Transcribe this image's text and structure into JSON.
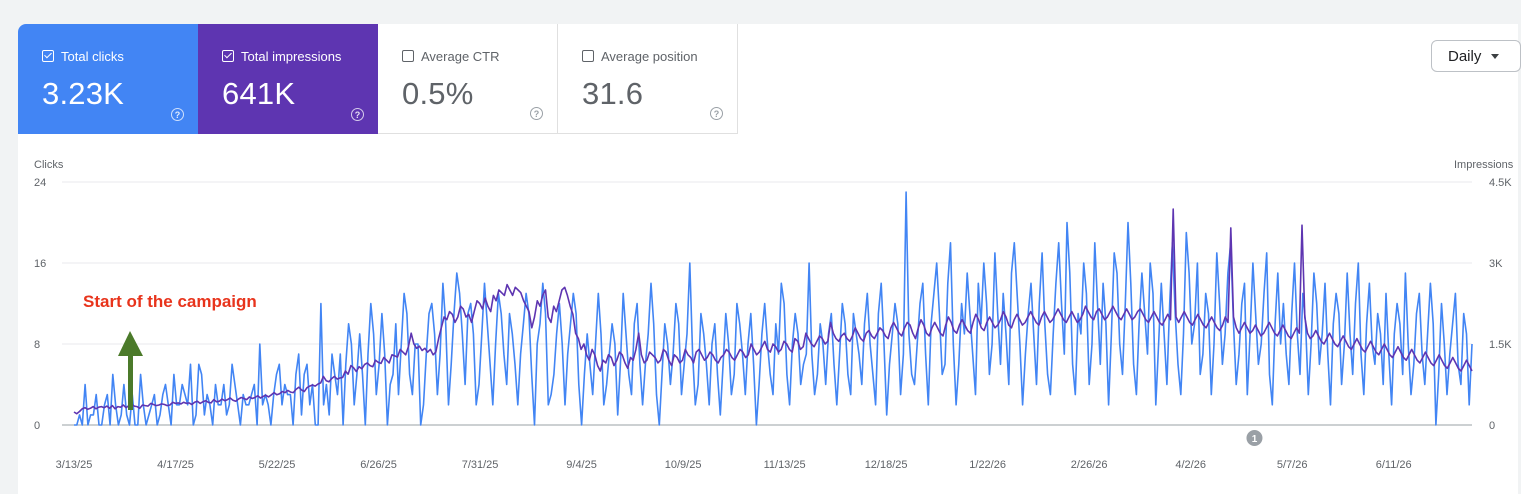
{
  "metrics": {
    "clicks": {
      "label": "Total clicks",
      "value": "3.23K",
      "checked": true
    },
    "impressions": {
      "label": "Total impressions",
      "value": "641K",
      "checked": true
    },
    "ctr": {
      "label": "Average CTR",
      "value": "0.5%",
      "checked": false
    },
    "position": {
      "label": "Average position",
      "value": "31.6",
      "checked": false
    }
  },
  "help_glyph": "?",
  "period_select": {
    "selected": "Daily"
  },
  "colors": {
    "clicks": "#4285f4",
    "impressions": "#5e35b1",
    "annotation": "#e8341c",
    "arrow": "#4b7a2a"
  },
  "annotation": {
    "text": "Start of the campaign"
  },
  "event_marker": {
    "label": "1",
    "date": "4/24/26"
  },
  "chart_data": {
    "type": "line",
    "left_axis": {
      "label": "Clicks",
      "ticks": [
        "24",
        "16",
        "8",
        "0"
      ],
      "ylim": [
        0,
        24
      ]
    },
    "right_axis": {
      "label": "Impressions",
      "ticks": [
        "4.5K",
        "3K",
        "1.5K",
        "0"
      ],
      "ylim": [
        0,
        4500
      ]
    },
    "x_tick_labels": [
      "3/13/25",
      "4/17/25",
      "5/22/25",
      "6/26/25",
      "7/31/25",
      "9/4/25",
      "10/9/25",
      "11/13/25",
      "12/18/25",
      "1/22/26",
      "2/26/26",
      "4/2/26",
      "5/7/26",
      "6/11/26"
    ],
    "x_range": [
      "3/13/25",
      "7/8/26"
    ],
    "grid": true,
    "series": [
      {
        "name": "Clicks",
        "axis": "left",
        "color": "#4285f4",
        "values": [
          0,
          0,
          1,
          0,
          4,
          0,
          1,
          1,
          3,
          0,
          0,
          2,
          3,
          0,
          5,
          2,
          0,
          1,
          4,
          1,
          0,
          3,
          0,
          0,
          5,
          2,
          0,
          1,
          2,
          3,
          0,
          1,
          3,
          4,
          2,
          0,
          5,
          2,
          2,
          4,
          3,
          2,
          6,
          0,
          1,
          6,
          5,
          1,
          3,
          2,
          0,
          4,
          2,
          2,
          4,
          1,
          2,
          6,
          4,
          2,
          0,
          3,
          2,
          2,
          3,
          4,
          0,
          8,
          2,
          3,
          2,
          0,
          3,
          5,
          6,
          2,
          4,
          3,
          3,
          0,
          5,
          7,
          1,
          5,
          6,
          2,
          4,
          0,
          0,
          12,
          2,
          4,
          1,
          7,
          5,
          3,
          7,
          0,
          6,
          10,
          8,
          2,
          5,
          9,
          5,
          0,
          7,
          12,
          9,
          3,
          6,
          11,
          7,
          0,
          4,
          5,
          10,
          3,
          8,
          13,
          11,
          5,
          3,
          8,
          8,
          0,
          2,
          7,
          11,
          12,
          9,
          3,
          7,
          14,
          10,
          2,
          6,
          11,
          15,
          13,
          9,
          4,
          11,
          12,
          9,
          2,
          4,
          9,
          14,
          10,
          6,
          2,
          8,
          13,
          11,
          7,
          4,
          11,
          9,
          6,
          2,
          7,
          10,
          13,
          11,
          5,
          0,
          8,
          10,
          14,
          11,
          2,
          3,
          5,
          9,
          12,
          8,
          2,
          7,
          10,
          13,
          11,
          4,
          0,
          5,
          9,
          6,
          3,
          8,
          13,
          9,
          2,
          4,
          7,
          10,
          8,
          1,
          6,
          13,
          9,
          5,
          3,
          10,
          12,
          6,
          2,
          6,
          9,
          14,
          10,
          3,
          0,
          5,
          10,
          8,
          4,
          7,
          12,
          10,
          3,
          6,
          9,
          16,
          7,
          2,
          4,
          11,
          9,
          6,
          2,
          8,
          10,
          5,
          1,
          6,
          11,
          8,
          3,
          5,
          12,
          10,
          7,
          3,
          8,
          11,
          6,
          0,
          4,
          9,
          12,
          8,
          5,
          3,
          10,
          7,
          14,
          12,
          5,
          2,
          8,
          11,
          9,
          4,
          6,
          7,
          16,
          7,
          3,
          5,
          10,
          8,
          4,
          9,
          11,
          6,
          2,
          7,
          12,
          10,
          5,
          3,
          11,
          9,
          7,
          4,
          10,
          13,
          8,
          5,
          2,
          11,
          14,
          8,
          1,
          6,
          9,
          12,
          10,
          3,
          7,
          23,
          9,
          5,
          4,
          8,
          12,
          14,
          7,
          2,
          10,
          13,
          16,
          11,
          5,
          6,
          14,
          18,
          8,
          2,
          6,
          12,
          9,
          15,
          11,
          7,
          3,
          14,
          10,
          16,
          12,
          5,
          8,
          17,
          11,
          6,
          13,
          9,
          4,
          15,
          18,
          13,
          8,
          2,
          7,
          11,
          14,
          9,
          4,
          12,
          17,
          10,
          5,
          3,
          9,
          14,
          18,
          12,
          7,
          20,
          15,
          6,
          3,
          11,
          9,
          16,
          13,
          4,
          8,
          18,
          12,
          6,
          14,
          10,
          2,
          9,
          17,
          15,
          8,
          5,
          12,
          20,
          14,
          6,
          3,
          10,
          15,
          11,
          7,
          16,
          13,
          2,
          8,
          14,
          9,
          4,
          12,
          18,
          11,
          6,
          3,
          9,
          19,
          15,
          8,
          10,
          16,
          5,
          7,
          13,
          11,
          3,
          8,
          17,
          12,
          6,
          9,
          15,
          18,
          10,
          4,
          7,
          12,
          14,
          3,
          9,
          16,
          11,
          6,
          8,
          13,
          17,
          5,
          2,
          10,
          15,
          8,
          12,
          7,
          4,
          11,
          16,
          9,
          5,
          13,
          10,
          3,
          8,
          15,
          12,
          6,
          9,
          14,
          7,
          2,
          10,
          13,
          11,
          4,
          8,
          15,
          9,
          5,
          12,
          16,
          7,
          3,
          10,
          14,
          8,
          6,
          11,
          9,
          4,
          13,
          7,
          2,
          9,
          12,
          10,
          5,
          15,
          8,
          3,
          6,
          11,
          13,
          7,
          4,
          9,
          14,
          10,
          0,
          5,
          12,
          8,
          3,
          7,
          10,
          13,
          6,
          4,
          11,
          9,
          2,
          8
        ]
      },
      {
        "name": "Impressions",
        "axis": "right",
        "color": "#5e35b1",
        "values": [
          240,
          210,
          250,
          300,
          320,
          290,
          310,
          340,
          300,
          330,
          340,
          320,
          350,
          310,
          360,
          300,
          340,
          330,
          370,
          320,
          360,
          380,
          350,
          340,
          310,
          370,
          360,
          350,
          400,
          380,
          360,
          370,
          390,
          380,
          360,
          370,
          420,
          400,
          410,
          390,
          420,
          400,
          410,
          380,
          420,
          440,
          400,
          430,
          450,
          420,
          410,
          470,
          430,
          440,
          480,
          450,
          470,
          500,
          460,
          440,
          480,
          510,
          490,
          470,
          520,
          490,
          510,
          540,
          500,
          530,
          550,
          520,
          560,
          600,
          560,
          580,
          620,
          600,
          640,
          610,
          600,
          660,
          700,
          650,
          620,
          690,
          720,
          740,
          720,
          760,
          780,
          900,
          820,
          800,
          860,
          900,
          850,
          870,
          880,
          1000,
          940,
          1100,
          1060,
          990,
          1080,
          1040,
          1120,
          1150,
          1100,
          1080,
          1200,
          1160,
          1140,
          1250,
          1200,
          1150,
          1300,
          1280,
          1260,
          1400,
          1350,
          1300,
          1450,
          1700,
          1500,
          1420,
          1460,
          1380,
          1420,
          1350,
          1400,
          1300,
          1350,
          1600,
          1800,
          2000,
          1950,
          2100,
          2050,
          1900,
          2000,
          2200,
          2150,
          2000,
          2050,
          1900,
          2100,
          2300,
          2250,
          2150,
          2350,
          2200,
          2100,
          2400,
          2300,
          2500,
          2450,
          2400,
          2600,
          2500,
          2400,
          2550,
          2500,
          2450,
          2300,
          2200,
          2100,
          1800,
          2000,
          2300,
          2200,
          2400,
          2500,
          2000,
          1900,
          2200,
          2100,
          2300,
          2500,
          2550,
          2400,
          2200,
          2050,
          1700,
          1600,
          1400,
          1500,
          1300,
          1200,
          1400,
          1300,
          1100,
          1000,
          1200,
          1150,
          1300,
          1250,
          1100,
          1200,
          1350,
          1300,
          1150,
          1050,
          1250,
          1200,
          1400,
          1700,
          1300,
          1150,
          1200,
          1350,
          1300,
          1250,
          1150,
          1200,
          1400,
          1350,
          1200,
          1100,
          1300,
          1250,
          1150,
          1200,
          1400,
          1300,
          1250,
          1150,
          1350,
          1400,
          1300,
          1200,
          1250,
          1350,
          1300,
          1200,
          1150,
          1250,
          1300,
          1400,
          1350,
          1250,
          1200,
          1300,
          1400,
          1350,
          1250,
          1300,
          1500,
          1400,
          1300,
          1350,
          1450,
          1550,
          1400,
          1350,
          1500,
          1450,
          1350,
          1400,
          1550,
          1500,
          1400,
          1350,
          1600,
          1550,
          1400,
          1450,
          1700,
          1600,
          1500,
          1450,
          1550,
          1650,
          1600,
          1500,
          1550,
          1900,
          1700,
          1600,
          1550,
          1650,
          1700,
          1600,
          1550,
          1650,
          1800,
          1700,
          1600,
          1550,
          1700,
          1750,
          1650,
          1600,
          1700,
          1800,
          1750,
          1650,
          1600,
          1800,
          1900,
          1800,
          1700,
          1650,
          1800,
          1900,
          1850,
          1700,
          1600,
          1800,
          1950,
          1850,
          1700,
          1650,
          1800,
          1900,
          1800,
          1700,
          1650,
          1850,
          2000,
          1900,
          1750,
          1700,
          1850,
          1950,
          1850,
          1750,
          1700,
          1900,
          2050,
          1950,
          1800,
          1750,
          1900,
          2000,
          1900,
          1800,
          1850,
          1950,
          2100,
          2000,
          1850,
          1800,
          1950,
          2050,
          1950,
          1850,
          1900,
          2000,
          2100,
          2000,
          1900,
          1850,
          2000,
          2100,
          2000,
          1900,
          1950,
          2050,
          2150,
          2050,
          1950,
          1900,
          2000,
          2100,
          2000,
          1900,
          1950,
          2050,
          2200,
          2100,
          2000,
          1950,
          2100,
          2150,
          2050,
          1950,
          2000,
          2100,
          2200,
          2100,
          2000,
          1950,
          2050,
          2150,
          2050,
          1950,
          2000,
          2100,
          2150,
          2050,
          1950,
          1900,
          2000,
          2100,
          2000,
          1900,
          1850,
          1950,
          2050,
          1950,
          4000,
          2000,
          1900,
          2000,
          2100,
          2000,
          1900,
          1850,
          1950,
          2050,
          1950,
          1850,
          1800,
          1900,
          2000,
          1900,
          1800,
          1750,
          1850,
          2000,
          1900,
          3650,
          2000,
          1800,
          1700,
          1800,
          1900,
          1800,
          1700,
          1750,
          1850,
          1750,
          1650,
          1700,
          1800,
          1900,
          1800,
          1700,
          1650,
          1750,
          1850,
          1750,
          1650,
          1600,
          1700,
          1800,
          1700,
          3700,
          2000,
          1700,
          1600,
          1650,
          1750,
          1650,
          1550,
          1500,
          1600,
          1700,
          1600,
          1500,
          1450,
          1550,
          1650,
          1550,
          1450,
          1400,
          1500,
          1600,
          1500,
          1400,
          1350,
          1450,
          1550,
          1450,
          1350,
          1300,
          1400,
          1500,
          1400,
          1300,
          1250,
          1350,
          1450,
          1350,
          1250,
          1200,
          1300,
          1400,
          1300,
          1200,
          1150,
          1250,
          1350,
          1250,
          1150,
          1100,
          1200,
          1300,
          1200,
          1100,
          1050,
          1150,
          1250,
          1150,
          1050,
          1000,
          1100,
          1200,
          1100,
          1000
        ]
      }
    ]
  }
}
